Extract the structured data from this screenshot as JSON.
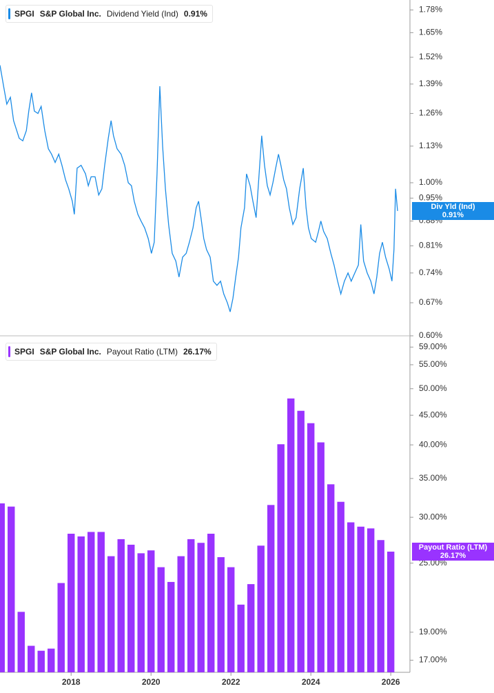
{
  "chart_data": [
    {
      "type": "line",
      "ticker": "SPGI",
      "company": "S&P Global Inc.",
      "last_value_label": "0.91%",
      "badge_title": "Div Yld (Ind)",
      "log_scale": true,
      "grid": false,
      "xlim": [
        2016.22,
        2026.48
      ],
      "ylim": [
        0.6,
        1.84
      ],
      "yticks": [
        {
          "value": 0.6,
          "label": "0.60%"
        },
        {
          "value": 0.67,
          "label": "0.67%"
        },
        {
          "value": 0.74,
          "label": "0.74%"
        },
        {
          "value": 0.81,
          "label": "0.81%"
        },
        {
          "value": 0.88,
          "label": "0.88%"
        },
        {
          "value": 0.95,
          "label": "0.95%"
        },
        {
          "value": 1.0,
          "label": "1.00%"
        },
        {
          "value": 1.13,
          "label": "1.13%"
        },
        {
          "value": 1.26,
          "label": "1.26%"
        },
        {
          "value": 1.39,
          "label": "1.39%"
        },
        {
          "value": 1.52,
          "label": "1.52%"
        },
        {
          "value": 1.65,
          "label": "1.65%"
        },
        {
          "value": 1.78,
          "label": "1.78%"
        }
      ],
      "x": [
        2016.22,
        2016.31,
        2016.39,
        2016.48,
        2016.56,
        2016.7,
        2016.79,
        2016.88,
        2016.94,
        2017.01,
        2017.08,
        2017.17,
        2017.25,
        2017.34,
        2017.43,
        2017.51,
        2017.6,
        2017.69,
        2017.77,
        2017.86,
        2017.94,
        2018.03,
        2018.08,
        2018.15,
        2018.25,
        2018.36,
        2018.43,
        2018.5,
        2018.6,
        2018.69,
        2018.77,
        2018.84,
        2018.93,
        2019.0,
        2019.06,
        2019.15,
        2019.25,
        2019.34,
        2019.43,
        2019.51,
        2019.58,
        2019.67,
        2019.75,
        2019.84,
        2019.93,
        2020.01,
        2020.08,
        2020.15,
        2020.22,
        2020.29,
        2020.36,
        2020.44,
        2020.53,
        2020.62,
        2020.7,
        2020.79,
        2020.88,
        2020.96,
        2021.05,
        2021.13,
        2021.19,
        2021.25,
        2021.32,
        2021.39,
        2021.48,
        2021.56,
        2021.65,
        2021.74,
        2021.82,
        2021.91,
        2021.98,
        2022.05,
        2022.12,
        2022.19,
        2022.25,
        2022.34,
        2022.39,
        2022.48,
        2022.55,
        2022.63,
        2022.7,
        2022.77,
        2022.84,
        2022.91,
        2022.98,
        2023.05,
        2023.12,
        2023.19,
        2023.25,
        2023.32,
        2023.39,
        2023.46,
        2023.55,
        2023.63,
        2023.72,
        2023.81,
        2023.88,
        2023.94,
        2024.01,
        2024.12,
        2024.19,
        2024.25,
        2024.32,
        2024.41,
        2024.5,
        2024.58,
        2024.67,
        2024.75,
        2024.84,
        2024.93,
        2025.01,
        2025.1,
        2025.19,
        2025.25,
        2025.32,
        2025.41,
        2025.5,
        2025.58,
        2025.65,
        2025.72,
        2025.79,
        2025.87,
        2025.96,
        2026.03,
        2026.08,
        2026.12,
        2026.17
      ],
      "series": [
        {
          "name": "Dividend Yield (Ind)",
          "color": "#1a8be6",
          "values": [
            1.48,
            1.38,
            1.3,
            1.33,
            1.23,
            1.16,
            1.15,
            1.19,
            1.27,
            1.35,
            1.27,
            1.26,
            1.29,
            1.19,
            1.12,
            1.1,
            1.07,
            1.1,
            1.06,
            1.01,
            0.98,
            0.94,
            0.9,
            1.05,
            1.06,
            1.03,
            0.99,
            1.02,
            1.02,
            0.96,
            0.98,
            1.06,
            1.16,
            1.23,
            1.17,
            1.12,
            1.1,
            1.06,
            1.0,
            0.99,
            0.94,
            0.9,
            0.88,
            0.86,
            0.83,
            0.79,
            0.82,
            1.03,
            1.38,
            1.13,
            0.98,
            0.87,
            0.79,
            0.77,
            0.73,
            0.78,
            0.79,
            0.82,
            0.86,
            0.92,
            0.94,
            0.89,
            0.83,
            0.8,
            0.78,
            0.72,
            0.71,
            0.72,
            0.69,
            0.67,
            0.65,
            0.68,
            0.73,
            0.78,
            0.86,
            0.92,
            1.03,
            0.99,
            0.94,
            0.89,
            1.02,
            1.17,
            1.06,
            0.99,
            0.96,
            1.0,
            1.05,
            1.1,
            1.06,
            1.01,
            0.98,
            0.92,
            0.87,
            0.89,
            0.98,
            1.05,
            0.92,
            0.86,
            0.83,
            0.82,
            0.85,
            0.88,
            0.85,
            0.83,
            0.79,
            0.76,
            0.72,
            0.69,
            0.72,
            0.74,
            0.72,
            0.74,
            0.76,
            0.87,
            0.77,
            0.74,
            0.72,
            0.69,
            0.73,
            0.79,
            0.82,
            0.78,
            0.75,
            0.72,
            0.8,
            0.98,
            0.91
          ]
        }
      ]
    },
    {
      "type": "bar",
      "ticker": "SPGI",
      "company": "S&P Global Inc.",
      "last_value_label": "26.17%",
      "log_scale": true,
      "grid": false,
      "xlim": [
        2016.22,
        2026.48
      ],
      "ylim": [
        16.2,
        61.7
      ],
      "xticks": [
        2018,
        2020,
        2022,
        2024,
        2026
      ],
      "yticks": [
        {
          "value": 17,
          "label": "17.00%"
        },
        {
          "value": 19,
          "label": "19.00%"
        },
        {
          "value": 25,
          "label": "25.00%"
        },
        {
          "value": 30,
          "label": "30.00%"
        },
        {
          "value": 35,
          "label": "35.00%"
        },
        {
          "value": 40,
          "label": "40.00%"
        },
        {
          "value": 45,
          "label": "45.00%"
        },
        {
          "value": 50,
          "label": "50.00%"
        },
        {
          "value": 55,
          "label": "55.00%"
        },
        {
          "value": 59,
          "label": "59.00%"
        }
      ],
      "x": [
        2016.25,
        2016.5,
        2016.75,
        2017.0,
        2017.25,
        2017.5,
        2017.75,
        2018.0,
        2018.25,
        2018.5,
        2018.75,
        2019.0,
        2019.25,
        2019.5,
        2019.75,
        2020.0,
        2020.25,
        2020.5,
        2020.75,
        2021.0,
        2021.25,
        2021.5,
        2021.75,
        2022.0,
        2022.25,
        2022.5,
        2022.75,
        2023.0,
        2023.25,
        2023.5,
        2023.75,
        2024.0,
        2024.25,
        2024.5,
        2024.75,
        2025.0,
        2025.25,
        2025.5,
        2025.75,
        2026.0
      ],
      "series": [
        {
          "name": "Payout Ratio (LTM)",
          "color": "#9933ff",
          "values": [
            31.7,
            31.3,
            20.6,
            18.0,
            17.65,
            17.8,
            23.1,
            28.1,
            27.8,
            28.3,
            28.3,
            25.7,
            27.5,
            26.9,
            26.0,
            26.3,
            24.6,
            23.2,
            25.7,
            27.5,
            27.1,
            28.1,
            25.6,
            24.6,
            21.2,
            23.0,
            26.8,
            31.5,
            40.1,
            48.1,
            45.8,
            43.6,
            40.4,
            34.2,
            31.9,
            29.4,
            28.9,
            28.7,
            27.4,
            26.17
          ]
        }
      ]
    }
  ]
}
